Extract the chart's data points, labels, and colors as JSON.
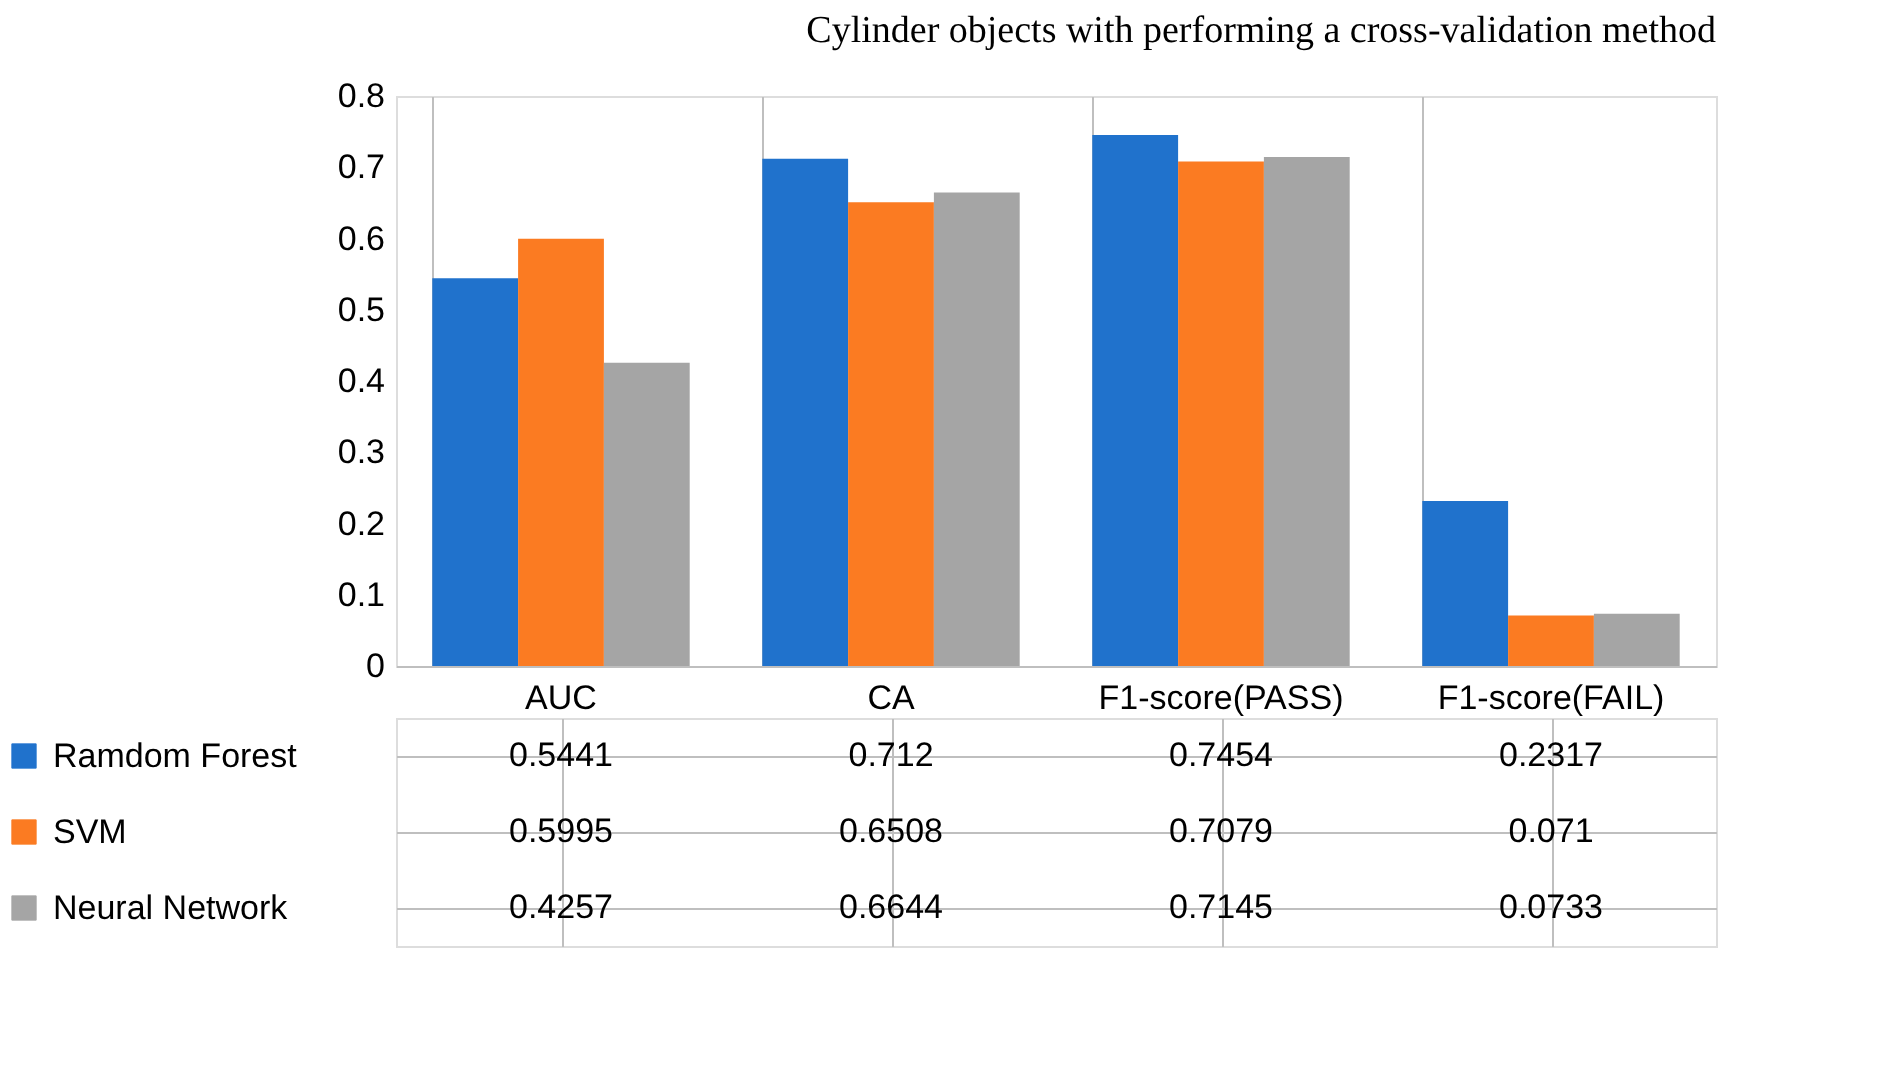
{
  "chart_data": {
    "type": "bar",
    "title": "Cylinder objects with performing a cross-validation method",
    "categories": [
      "AUC",
      "CA",
      "F1-score(PASS)",
      "F1-score(FAIL)"
    ],
    "series": [
      {
        "name": "Ramdom Forest",
        "color": "#2072cc",
        "values": [
          0.5441,
          0.712,
          0.7454,
          0.2317
        ]
      },
      {
        "name": "SVM",
        "color": "#fb7b22",
        "values": [
          0.5995,
          0.6508,
          0.7079,
          0.071
        ]
      },
      {
        "name": "Neural Network",
        "color": "#a5a5a5",
        "values": [
          0.4257,
          0.6644,
          0.7145,
          0.0733
        ]
      }
    ],
    "ylim": [
      0,
      0.8
    ],
    "yticks": [
      0,
      0.1,
      0.2,
      0.3,
      0.4,
      0.5,
      0.6,
      0.7,
      0.8
    ],
    "grid": false,
    "data_labels": true,
    "legend": "bottom left"
  }
}
